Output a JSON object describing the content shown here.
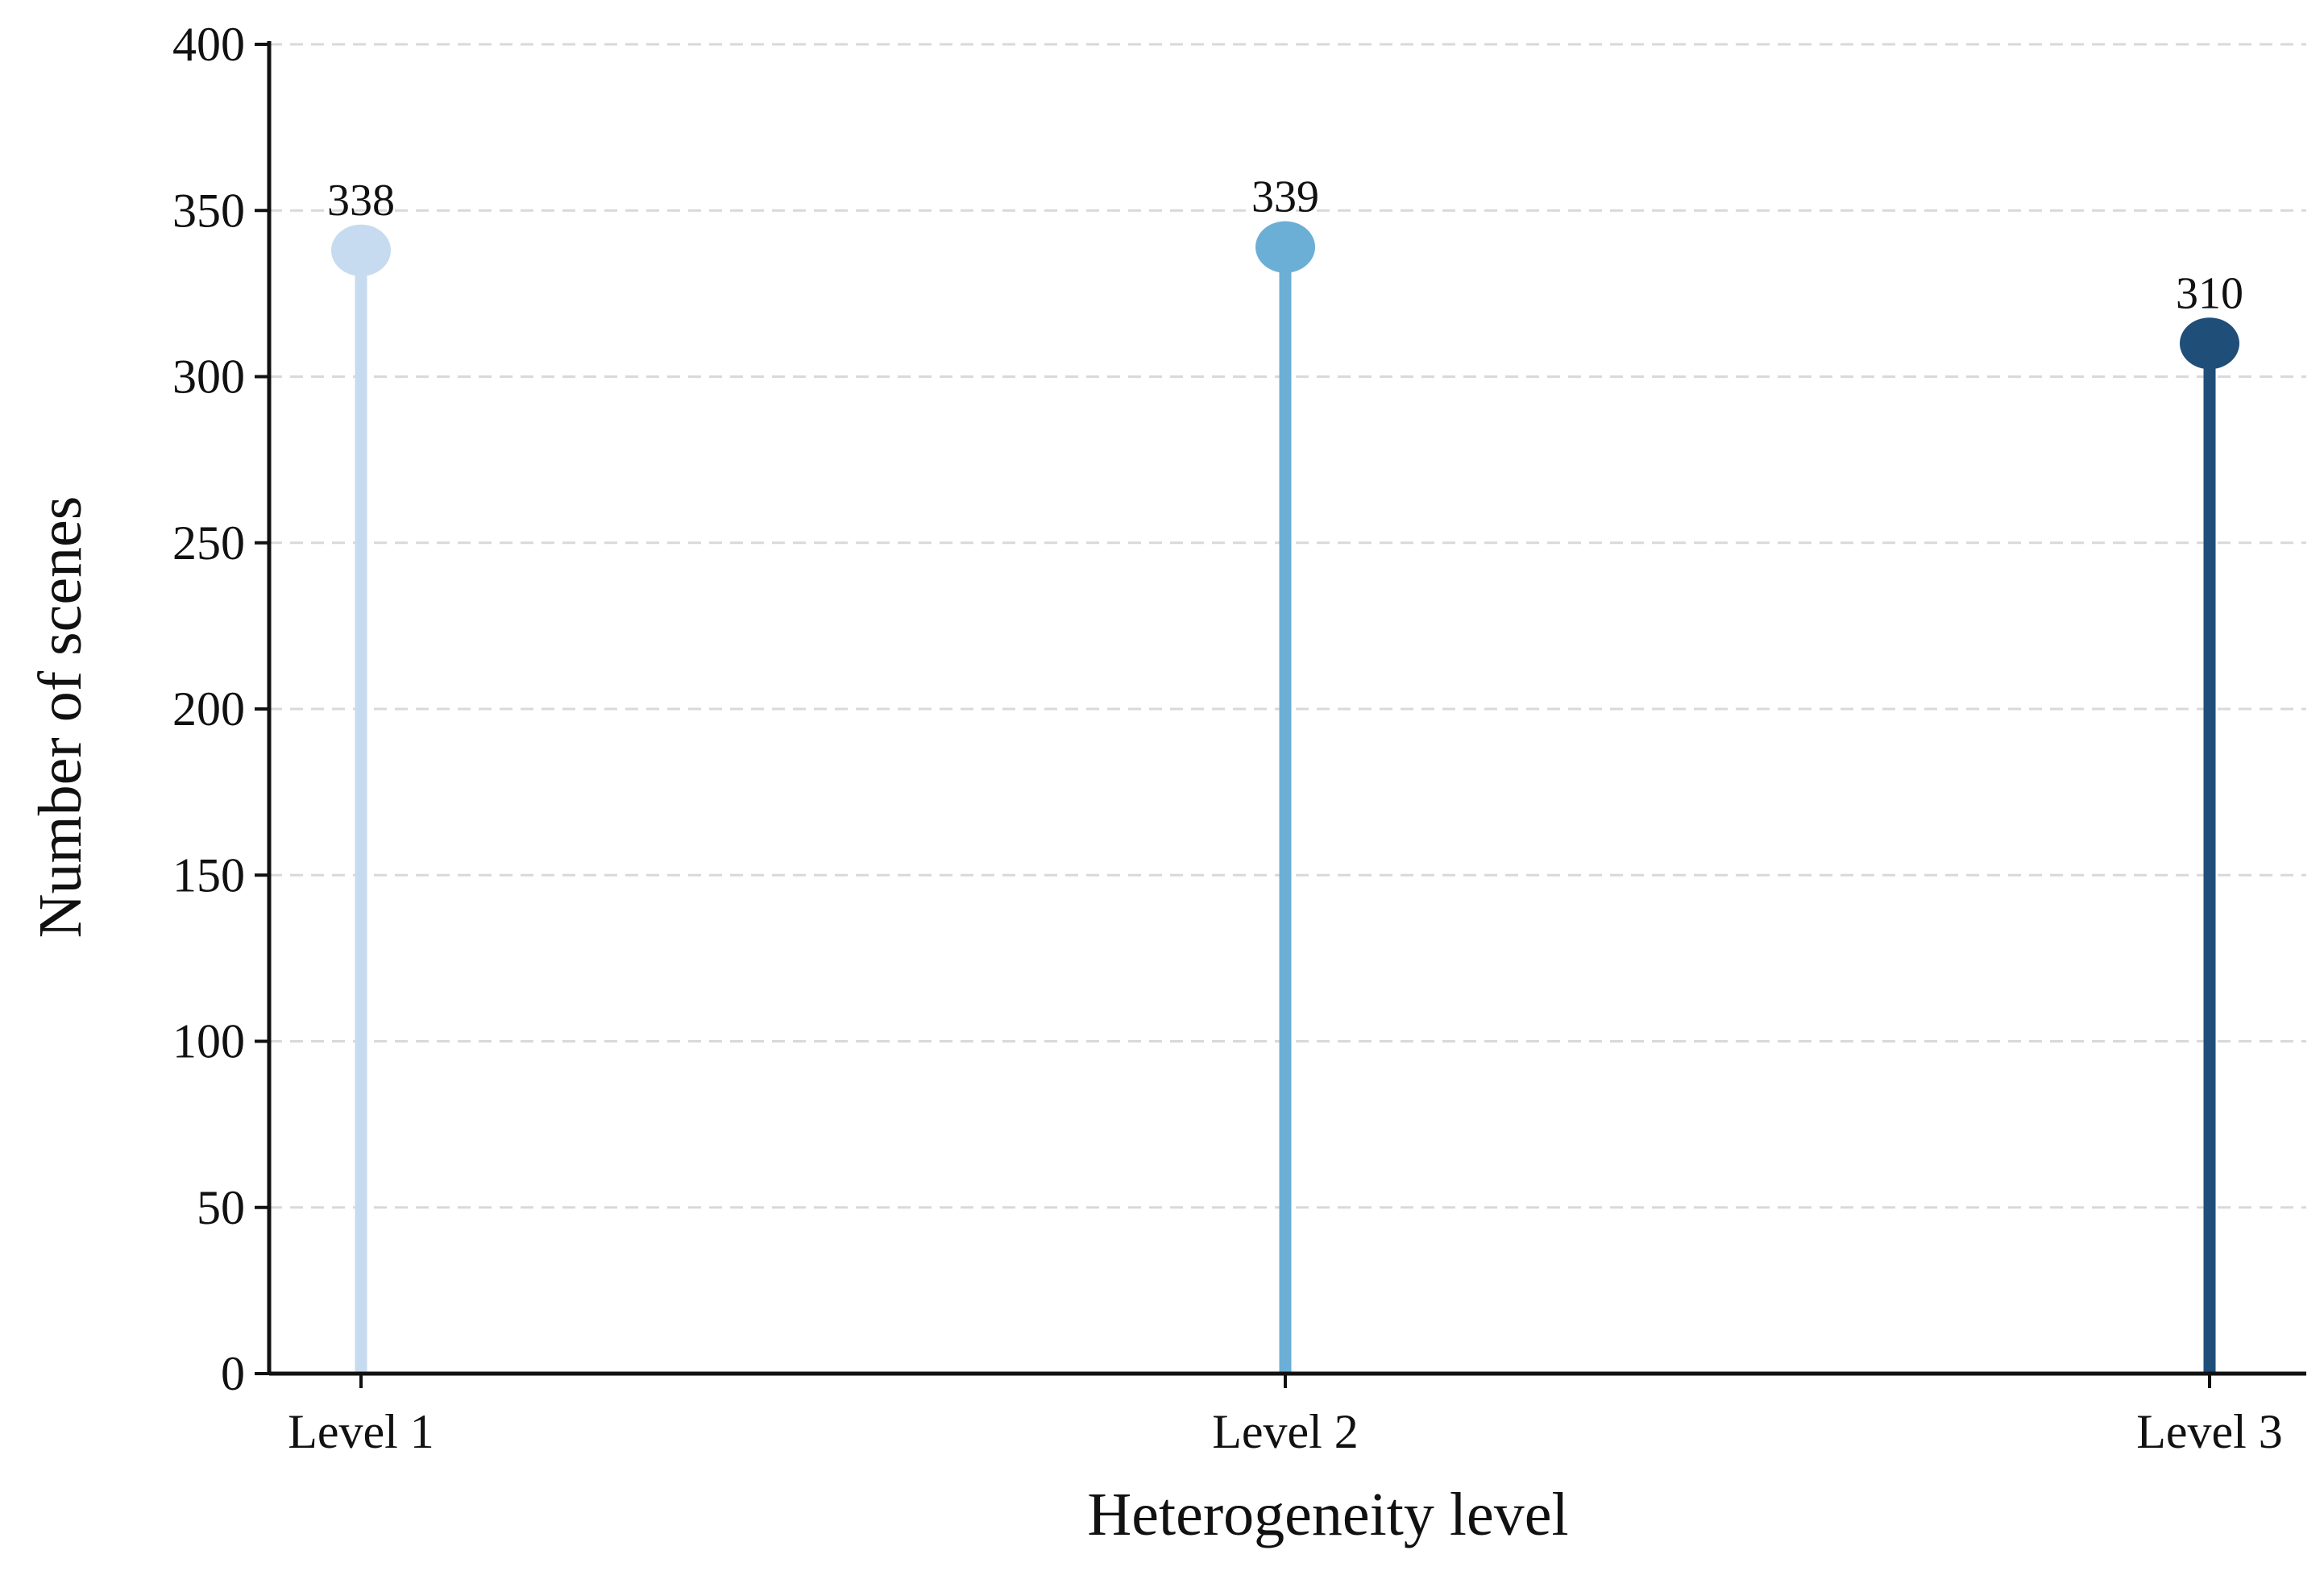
{
  "chart_data": {
    "type": "lollipop",
    "title": "",
    "xlabel": "Heterogeneity level",
    "ylabel": "Number of scenes",
    "categories": [
      "Level 1",
      "Level 2",
      "Level 3"
    ],
    "values": [
      338,
      339,
      310
    ],
    "data_labels": [
      "338",
      "339",
      "310"
    ],
    "colors": [
      "#c6dbef",
      "#6baed6",
      "#1f4e79"
    ],
    "ylim": [
      0,
      400
    ],
    "yticks": [
      0,
      50,
      100,
      150,
      200,
      250,
      300,
      350,
      400
    ],
    "ytick_labels": [
      "0",
      "50",
      "100",
      "150",
      "200",
      "250",
      "300",
      "350",
      "400"
    ],
    "grid": "y-dashed",
    "legend": "none"
  }
}
